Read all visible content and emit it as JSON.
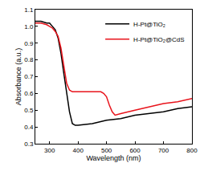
{
  "chart_data": {
    "type": "line",
    "x_label": "Wavelength (nm)",
    "y_label": "Absorbance (a.u.)",
    "xlim": [
      250,
      800
    ],
    "xticks": [
      300,
      400,
      500,
      600,
      700,
      800
    ],
    "ylim": [
      0.3,
      1.1
    ],
    "yticks": [
      0.3,
      0.4,
      0.5,
      0.6,
      0.7,
      0.8,
      0.9,
      {
        "value": 1,
        "label": "1.0"
      },
      1.1
    ],
    "grid": false,
    "legend": "upper right",
    "series": [
      {
        "name": "H-Pt@TiO₂",
        "color": "#000000",
        "x": [
          250,
          270,
          290,
          300,
          310,
          320,
          330,
          340,
          350,
          360,
          370,
          380,
          390,
          400,
          450,
          500,
          550,
          600,
          650,
          700,
          750,
          800
        ],
        "values": [
          1.03,
          1.03,
          1.02,
          1.02,
          1.0,
          0.98,
          0.93,
          0.84,
          0.72,
          0.6,
          0.49,
          0.42,
          0.41,
          0.41,
          0.42,
          0.44,
          0.45,
          0.47,
          0.48,
          0.49,
          0.51,
          0.52
        ]
      },
      {
        "name": "H-Pt@TiO₂@CdS",
        "color": "#e8141c",
        "x": [
          250,
          270,
          290,
          300,
          310,
          320,
          330,
          340,
          350,
          360,
          370,
          380,
          400,
          450,
          480,
          490,
          500,
          510,
          520,
          530,
          550,
          600,
          650,
          700,
          750,
          800
        ],
        "values": [
          1.02,
          1.02,
          1.01,
          1.0,
          0.99,
          0.97,
          0.94,
          0.87,
          0.76,
          0.66,
          0.62,
          0.61,
          0.61,
          0.61,
          0.61,
          0.6,
          0.58,
          0.53,
          0.49,
          0.47,
          0.48,
          0.5,
          0.52,
          0.54,
          0.55,
          0.57
        ]
      }
    ]
  }
}
